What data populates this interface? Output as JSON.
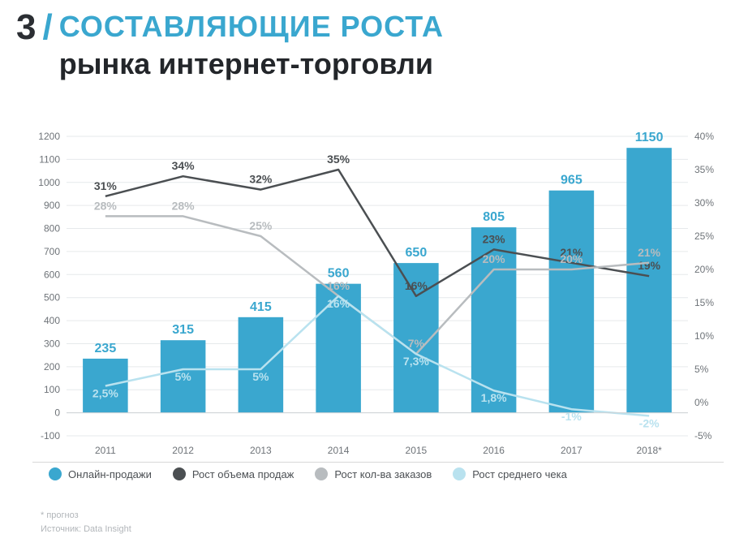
{
  "page_number": "3",
  "title_line1": "СОСТАВЛЯЮЩИЕ РОСТА",
  "title_line2": "рынка интернет-торговли",
  "chart": {
    "type": "bar+line",
    "background_color": "#ffffff",
    "grid_color": "#e6e9eb",
    "categories": [
      "2011",
      "2012",
      "2013",
      "2014",
      "2015",
      "2016",
      "2017",
      "2018*"
    ],
    "bars": {
      "values": [
        235,
        315,
        415,
        560,
        650,
        805,
        965,
        1150
      ],
      "color": "#3aa7cf",
      "bar_width": 0.58,
      "label_color": "#3aa7cf",
      "label_fontsize": 16
    },
    "y_left": {
      "min": -100,
      "max": 1200,
      "step": 100,
      "label_fontsize": 12,
      "label_color": "#6e7378"
    },
    "y_right": {
      "min": -5,
      "max": 40,
      "step": 5,
      "suffix": "%",
      "label_fontsize": 12,
      "label_color": "#6e7378"
    },
    "lines": [
      {
        "key": "sales_growth",
        "values_pct": [
          31,
          34,
          32,
          35,
          16,
          23,
          21,
          19
        ],
        "labels": [
          "31%",
          "34%",
          "32%",
          "35%",
          "16%",
          "23%",
          "21%",
          "19%"
        ],
        "color": "#4b4f52",
        "width": 2.5
      },
      {
        "key": "orders_growth",
        "values_pct": [
          28,
          28,
          25,
          16,
          7.3,
          20,
          20,
          21
        ],
        "labels": [
          "28%",
          "28%",
          "25%",
          "16%",
          "7%",
          "20%",
          "20%",
          "21%"
        ],
        "color": "#b8bcbf",
        "width": 2.5
      },
      {
        "key": "avg_check_growth",
        "values_pct": [
          2.5,
          5,
          5,
          16,
          7.3,
          1.8,
          -1,
          -2
        ],
        "labels": [
          "2,5%",
          "5%",
          "5%",
          "16%",
          "7,3%",
          "1,8%",
          "-1%",
          "-2%"
        ],
        "color": "#b9e2ef",
        "width": 2.5
      }
    ],
    "x_axis_fontsize": 13
  },
  "legend": {
    "items": [
      {
        "label": "Онлайн-продажи",
        "color": "#3aa7cf"
      },
      {
        "label": "Рост объема продаж",
        "color": "#4b4f52"
      },
      {
        "label": "Рост кол-ва заказов",
        "color": "#b8bcbf"
      },
      {
        "label": "Рост среднего чека",
        "color": "#b9e2ef"
      }
    ]
  },
  "footnote_forecast": "* прогноз",
  "footnote_source": "Источник: Data Insight"
}
